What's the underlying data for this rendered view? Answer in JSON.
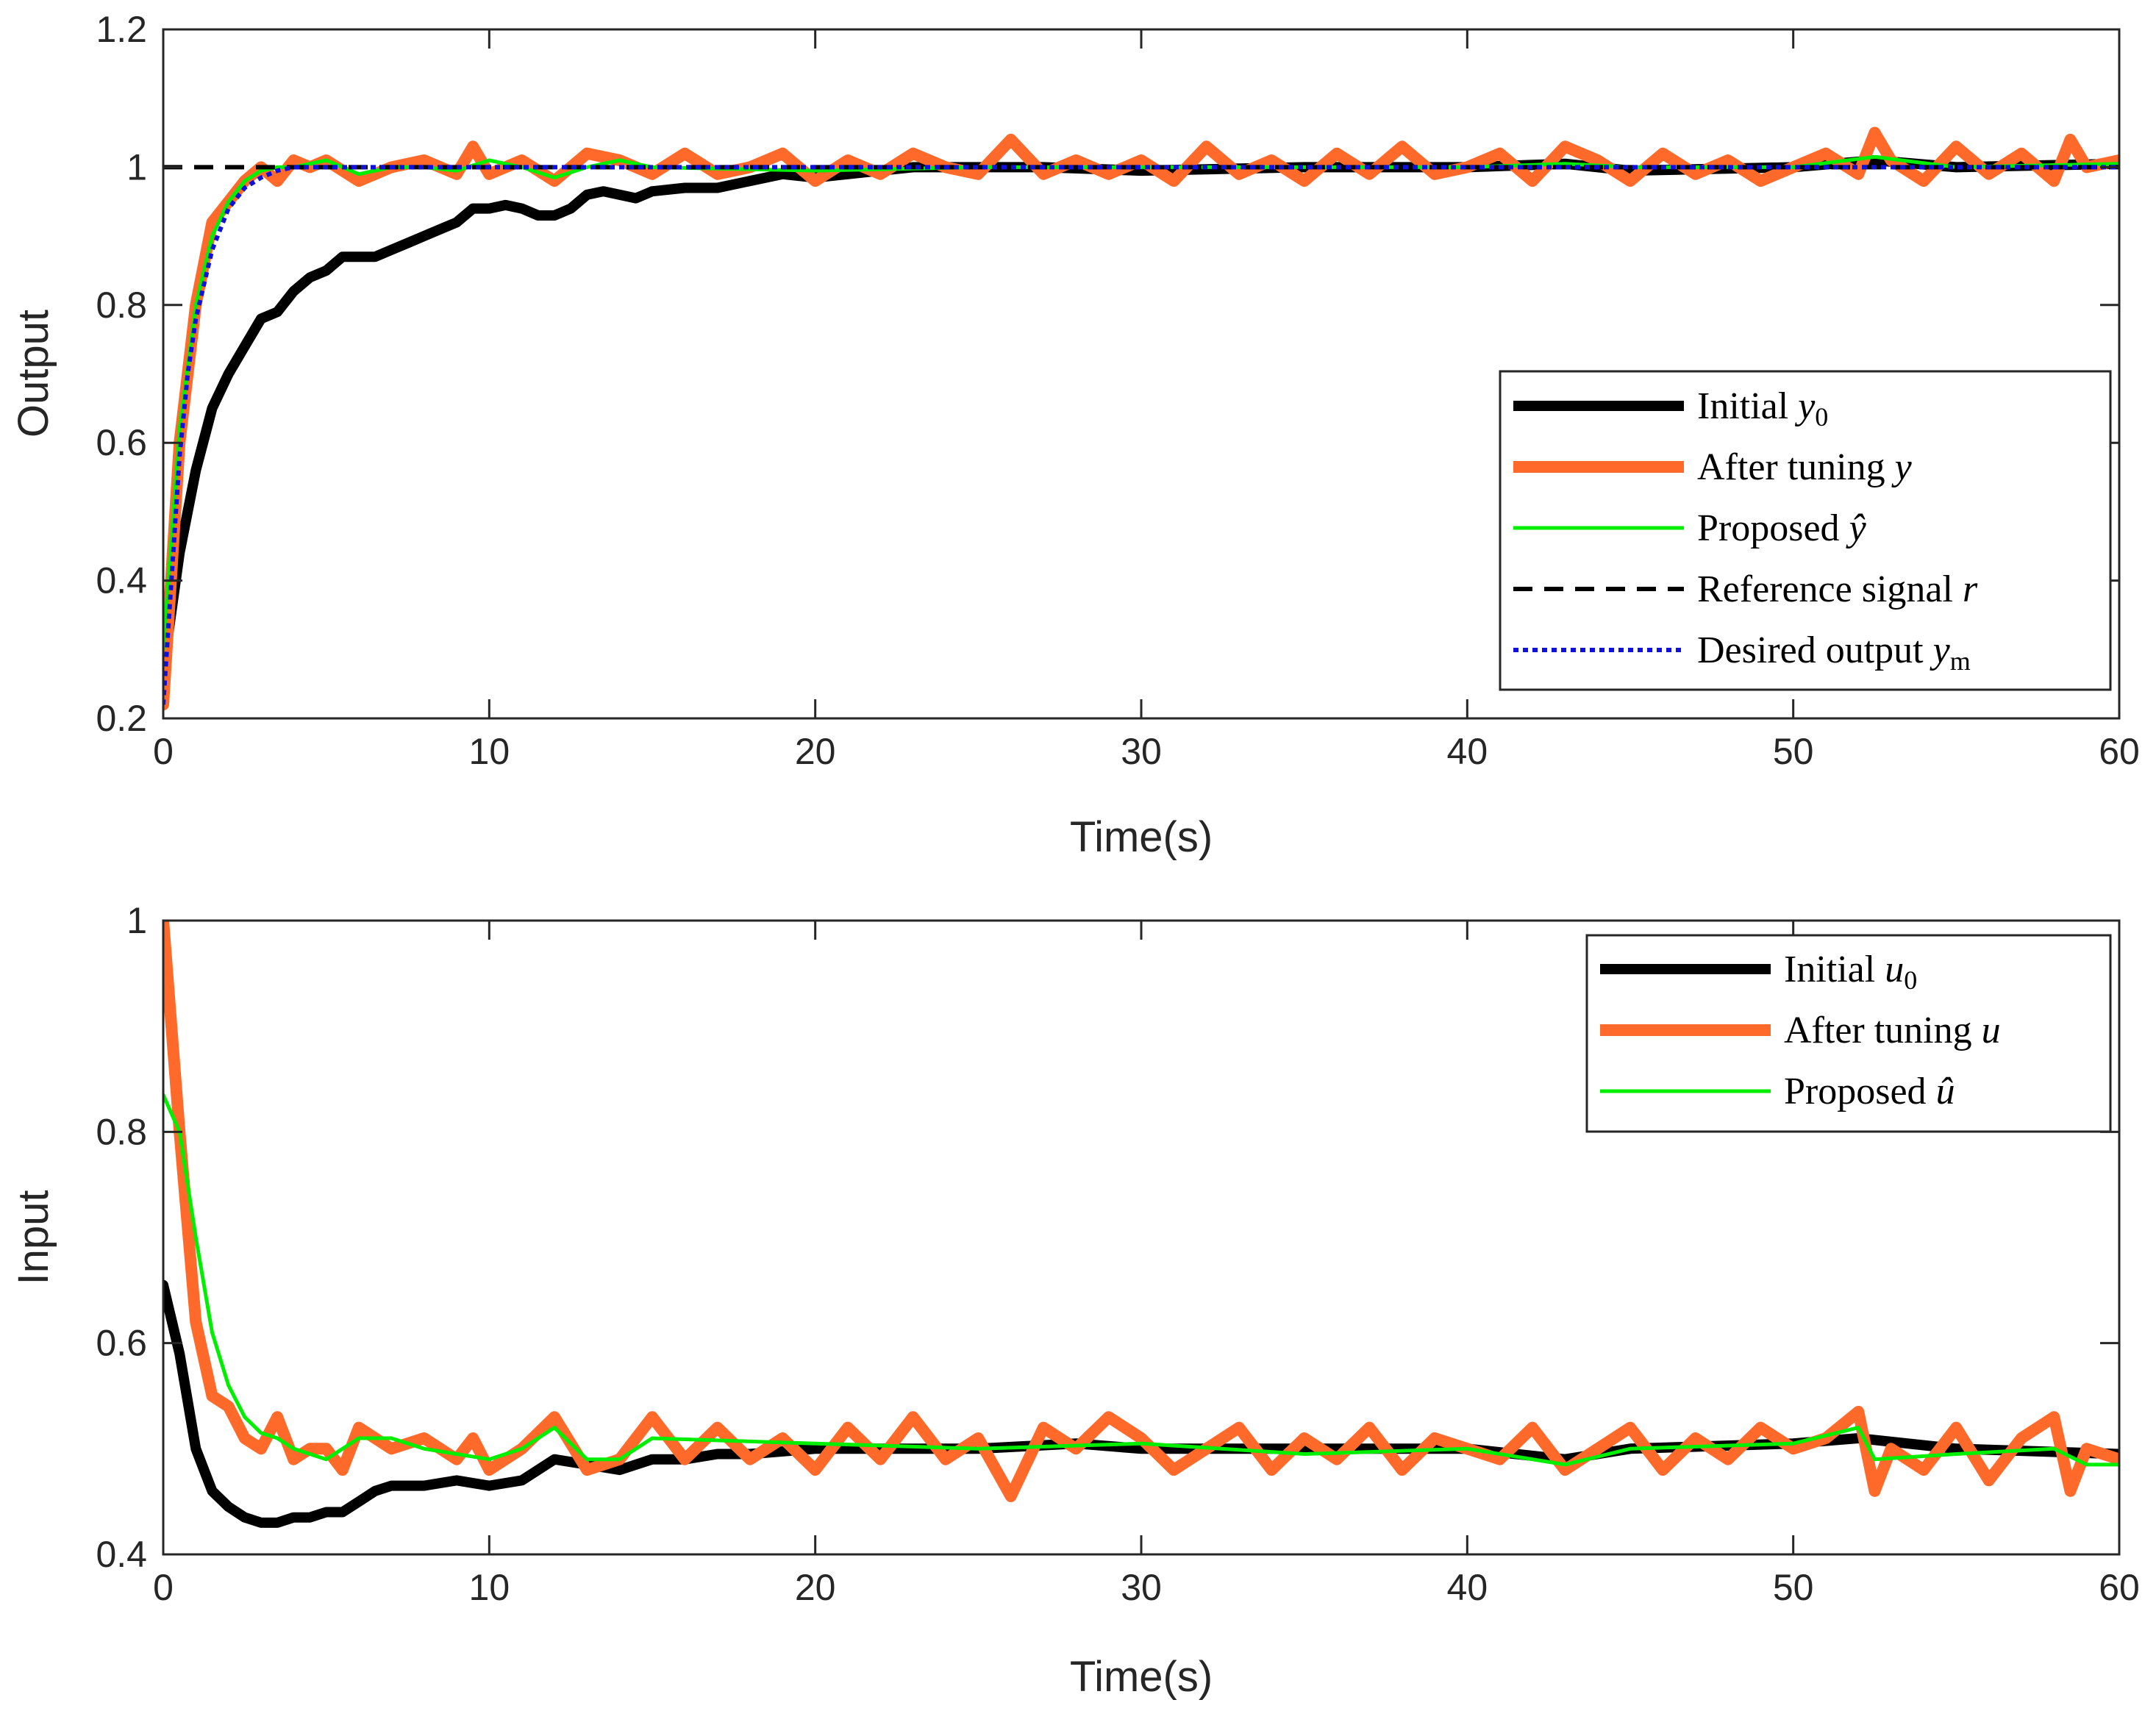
{
  "colors": {
    "initial": "#000000",
    "tuned": "#ff6a2b",
    "proposed": "#00ee00",
    "reference": "#000000",
    "desired": "#1010dd"
  },
  "chart_data": [
    {
      "type": "line",
      "title": "",
      "xlabel": "Time(s)",
      "ylabel": "Output",
      "xlim": [
        0,
        60
      ],
      "ylim": [
        0.2,
        1.2
      ],
      "xticks": [
        "0",
        "10",
        "20",
        "30",
        "40",
        "50",
        "60"
      ],
      "yticks": [
        "0.2",
        "0.4",
        "0.6",
        "0.8",
        "1",
        "1.2"
      ],
      "grid": false,
      "legend_position": "right",
      "legend": [
        {
          "key": "initial",
          "text": "Initial ",
          "math": "y",
          "sub": "0"
        },
        {
          "key": "tuned",
          "text": "After tuning ",
          "math": "y",
          "sub": ""
        },
        {
          "key": "proposed",
          "text": "Proposed ",
          "math": "ŷ",
          "sub": ""
        },
        {
          "key": "reference",
          "text": "Reference signal ",
          "math": "r",
          "sub": ""
        },
        {
          "key": "desired",
          "text": "Desired output ",
          "math": "y",
          "sub": "m"
        }
      ],
      "series": [
        {
          "key": "initial",
          "name": "Initial y0",
          "x": [
            0,
            0.5,
            1,
            1.5,
            2,
            2.5,
            3,
            3.5,
            4,
            4.5,
            5,
            5.5,
            6,
            6.5,
            7,
            7.5,
            8,
            8.5,
            9,
            9.5,
            10,
            10.5,
            11,
            11.5,
            12,
            12.5,
            13,
            13.5,
            14,
            14.5,
            15,
            16,
            17,
            18,
            19,
            20,
            21,
            22,
            23,
            25,
            27,
            30,
            35,
            40,
            43,
            45,
            50,
            52.5,
            55,
            60
          ],
          "values": [
            0.27,
            0.44,
            0.56,
            0.65,
            0.7,
            0.74,
            0.78,
            0.79,
            0.82,
            0.84,
            0.85,
            0.87,
            0.87,
            0.87,
            0.88,
            0.89,
            0.9,
            0.91,
            0.92,
            0.94,
            0.94,
            0.945,
            0.94,
            0.93,
            0.93,
            0.94,
            0.96,
            0.965,
            0.96,
            0.955,
            0.965,
            0.97,
            0.97,
            0.98,
            0.99,
            0.985,
            0.99,
            0.995,
            1.0,
            1.0,
            1.0,
            0.995,
            1.0,
            1.0,
            1.005,
            0.995,
            1.0,
            1.01,
            1.0,
            1.005
          ]
        },
        {
          "key": "tuned",
          "name": "After tuning y",
          "x": [
            0,
            0.5,
            1,
            1.5,
            2,
            2.5,
            3,
            3.5,
            4,
            4.5,
            5,
            6,
            7,
            8,
            9,
            9.5,
            10,
            11,
            12,
            13,
            14,
            15,
            16,
            17,
            18,
            19,
            20,
            21,
            22,
            23,
            24,
            25,
            26,
            27,
            28,
            29,
            30,
            31,
            32,
            33,
            34,
            35,
            36,
            37,
            38,
            39,
            40,
            41,
            42,
            43,
            44,
            45,
            46,
            47,
            48,
            49,
            50,
            51,
            52,
            52.5,
            53,
            54,
            55,
            56,
            57,
            58,
            58.5,
            59,
            60
          ],
          "values": [
            0.22,
            0.6,
            0.8,
            0.92,
            0.95,
            0.98,
            1.0,
            0.98,
            1.01,
            1.0,
            1.01,
            0.98,
            1.0,
            1.01,
            0.99,
            1.03,
            0.99,
            1.01,
            0.98,
            1.02,
            1.01,
            0.99,
            1.02,
            0.99,
            1.0,
            1.02,
            0.98,
            1.01,
            0.99,
            1.02,
            1.0,
            0.99,
            1.04,
            0.99,
            1.01,
            0.99,
            1.01,
            0.98,
            1.03,
            0.99,
            1.01,
            0.98,
            1.02,
            0.99,
            1.03,
            0.99,
            1.0,
            1.02,
            0.98,
            1.03,
            1.01,
            0.98,
            1.02,
            0.99,
            1.01,
            0.98,
            1.0,
            1.02,
            0.99,
            1.05,
            1.01,
            0.98,
            1.03,
            0.99,
            1.02,
            0.98,
            1.04,
            1.0,
            1.01
          ]
        },
        {
          "key": "proposed",
          "name": "Proposed ŷ",
          "x": [
            0,
            0.5,
            1,
            1.5,
            2,
            2.5,
            3,
            3.5,
            4,
            5,
            6,
            7,
            8,
            9,
            10,
            11,
            12,
            13,
            14,
            15,
            20,
            25,
            30,
            35,
            40,
            43,
            45,
            50,
            52.5,
            55,
            60
          ],
          "values": [
            0.3,
            0.62,
            0.8,
            0.9,
            0.95,
            0.98,
            0.995,
            1.0,
            1.0,
            1.01,
            0.99,
            1.0,
            1.0,
            0.995,
            1.01,
            1.0,
            0.985,
            1.0,
            1.01,
            1.0,
            0.995,
            1.0,
            1.0,
            1.0,
            1.0,
            1.005,
            1.0,
            1.0,
            1.015,
            1.0,
            1.005
          ]
        },
        {
          "key": "reference",
          "name": "Reference signal r",
          "x": [
            0,
            60
          ],
          "values": [
            1,
            1
          ]
        },
        {
          "key": "desired",
          "name": "Desired output ym",
          "x": [
            0,
            0.25,
            0.5,
            0.75,
            1,
            1.5,
            2,
            2.5,
            3,
            3.5,
            4,
            5,
            60
          ],
          "values": [
            0.22,
            0.4,
            0.58,
            0.7,
            0.78,
            0.88,
            0.94,
            0.97,
            0.985,
            0.995,
            1.0,
            1.0,
            1.0
          ]
        }
      ]
    },
    {
      "type": "line",
      "title": "",
      "xlabel": "Time(s)",
      "ylabel": "Input",
      "xlim": [
        0,
        60
      ],
      "ylim": [
        0.4,
        1.0
      ],
      "xticks": [
        "0",
        "10",
        "20",
        "30",
        "40",
        "50",
        "60"
      ],
      "yticks": [
        "0.4",
        "0.6",
        "0.8",
        "1"
      ],
      "grid": false,
      "legend_position": "top-right",
      "legend": [
        {
          "key": "initial",
          "text": "Initial ",
          "math": "u",
          "sub": "0"
        },
        {
          "key": "tuned",
          "text": "After tuning ",
          "math": "u",
          "sub": ""
        },
        {
          "key": "proposed",
          "text": "Proposed ",
          "math": "û",
          "sub": ""
        }
      ],
      "series": [
        {
          "key": "initial",
          "name": "Initial u0",
          "x": [
            0,
            0.5,
            1,
            1.5,
            2,
            2.5,
            3,
            3.5,
            4,
            4.5,
            5,
            5.5,
            6,
            6.5,
            7,
            8,
            9,
            10,
            11,
            12,
            13,
            14,
            15,
            16,
            17,
            18,
            20,
            22,
            25,
            28,
            30,
            35,
            40,
            43,
            45,
            50,
            52,
            55,
            60
          ],
          "values": [
            0.655,
            0.59,
            0.5,
            0.46,
            0.445,
            0.435,
            0.43,
            0.43,
            0.435,
            0.435,
            0.44,
            0.44,
            0.45,
            0.46,
            0.465,
            0.465,
            0.47,
            0.465,
            0.47,
            0.49,
            0.485,
            0.48,
            0.49,
            0.49,
            0.495,
            0.495,
            0.5,
            0.5,
            0.5,
            0.505,
            0.5,
            0.5,
            0.5,
            0.49,
            0.5,
            0.505,
            0.51,
            0.5,
            0.495
          ]
        },
        {
          "key": "tuned",
          "name": "After tuning u",
          "x": [
            0,
            0.5,
            1,
            1.5,
            2,
            2.5,
            3,
            3.5,
            4,
            4.5,
            5,
            5.5,
            6,
            7,
            8,
            9,
            9.5,
            10,
            11,
            12,
            13,
            14,
            15,
            16,
            17,
            18,
            19,
            20,
            21,
            22,
            23,
            24,
            25,
            26,
            27,
            28,
            29,
            30,
            31,
            32,
            33,
            34,
            35,
            36,
            37,
            38,
            39,
            40,
            41,
            42,
            43,
            44,
            45,
            46,
            47,
            48,
            49,
            50,
            51,
            52,
            52.5,
            53,
            54,
            55,
            56,
            57,
            58,
            58.5,
            59,
            60
          ],
          "values": [
            1.0,
            0.8,
            0.62,
            0.55,
            0.54,
            0.51,
            0.5,
            0.53,
            0.49,
            0.5,
            0.5,
            0.48,
            0.52,
            0.5,
            0.51,
            0.49,
            0.51,
            0.48,
            0.5,
            0.53,
            0.48,
            0.49,
            0.53,
            0.49,
            0.52,
            0.49,
            0.51,
            0.48,
            0.52,
            0.49,
            0.53,
            0.49,
            0.51,
            0.455,
            0.52,
            0.5,
            0.53,
            0.51,
            0.48,
            0.5,
            0.52,
            0.48,
            0.51,
            0.49,
            0.52,
            0.48,
            0.51,
            0.5,
            0.49,
            0.52,
            0.48,
            0.5,
            0.52,
            0.48,
            0.51,
            0.49,
            0.52,
            0.5,
            0.51,
            0.535,
            0.46,
            0.5,
            0.48,
            0.52,
            0.47,
            0.51,
            0.53,
            0.46,
            0.5,
            0.49
          ]
        },
        {
          "key": "proposed",
          "name": "Proposed û",
          "x": [
            0,
            0.5,
            1,
            1.5,
            2,
            2.5,
            3,
            3.5,
            4,
            5,
            6,
            7,
            8,
            9,
            10,
            11,
            12,
            13,
            14,
            15,
            20,
            25,
            30,
            35,
            40,
            43,
            45,
            50,
            52,
            52.5,
            55,
            58,
            59,
            60
          ],
          "values": [
            0.835,
            0.8,
            0.7,
            0.61,
            0.56,
            0.53,
            0.515,
            0.51,
            0.5,
            0.49,
            0.51,
            0.51,
            0.5,
            0.495,
            0.49,
            0.5,
            0.52,
            0.49,
            0.49,
            0.51,
            0.505,
            0.5,
            0.505,
            0.495,
            0.5,
            0.485,
            0.5,
            0.505,
            0.52,
            0.49,
            0.495,
            0.5,
            0.485,
            0.485
          ]
        }
      ]
    }
  ]
}
